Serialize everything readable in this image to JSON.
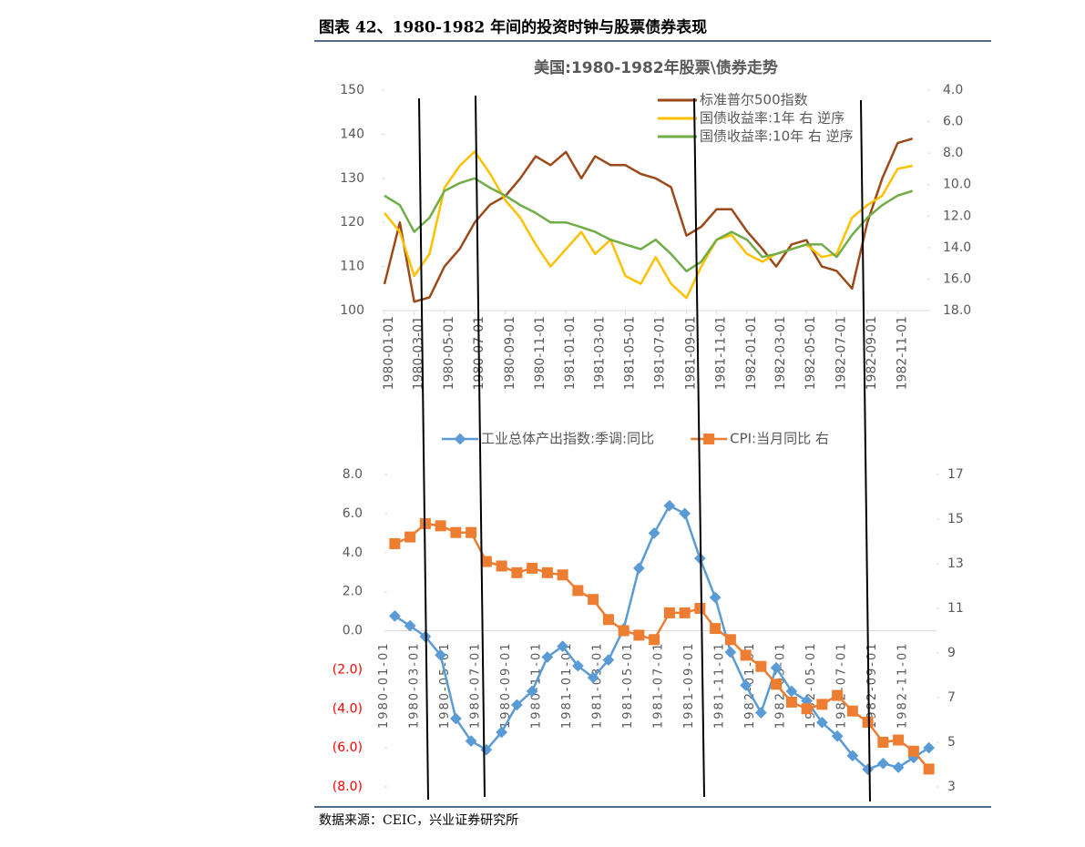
{
  "header": {
    "title": "图表 42、1980-1982 年间的投资时钟与股票债券表现"
  },
  "footer": {
    "source": "数据来源：CEIC，兴业证券研究所"
  },
  "chart_data": [
    {
      "type": "line",
      "title": "美国:1980-1982年股票\\债券走势",
      "legend": "upper right",
      "x": [
        "1980-01-01",
        "1980-02-01",
        "1980-03-01",
        "1980-04-01",
        "1980-05-01",
        "1980-06-01",
        "1980-07-01",
        "1980-08-01",
        "1980-09-01",
        "1980-10-01",
        "1980-11-01",
        "1980-12-01",
        "1981-01-01",
        "1981-02-01",
        "1981-03-01",
        "1981-04-01",
        "1981-05-01",
        "1981-06-01",
        "1981-07-01",
        "1981-08-01",
        "1981-09-01",
        "1981-10-01",
        "1981-11-01",
        "1981-12-01",
        "1982-01-01",
        "1982-02-01",
        "1982-03-01",
        "1982-04-01",
        "1982-05-01",
        "1982-06-01",
        "1982-07-01",
        "1982-08-01",
        "1982-09-01",
        "1982-10-01",
        "1982-11-01",
        "1982-12-01"
      ],
      "xlim": [
        "1980-01-01",
        "1982-12-31"
      ],
      "xticks": [
        "1980-01-01",
        "1980-03-01",
        "1980-05-01",
        "1980-07-01",
        "1980-09-01",
        "1980-11-01",
        "1981-01-01",
        "1981-03-01",
        "1981-05-01",
        "1981-07-01",
        "1981-09-01",
        "1981-11-01",
        "1982-01-01",
        "1982-03-01",
        "1982-05-01",
        "1982-07-01",
        "1982-09-01",
        "1982-11-01"
      ],
      "ylim": [
        100,
        150
      ],
      "yticks": [
        100,
        110,
        120,
        130,
        140,
        150
      ],
      "y2lim": [
        18,
        4
      ],
      "y2ticks": [
        {
          "value": 4,
          "label": "4.0"
        },
        {
          "value": 6,
          "label": "6.0"
        },
        {
          "value": 8,
          "label": "8.0"
        },
        {
          "value": 10,
          "label": "10.0"
        },
        {
          "value": 12,
          "label": "12.0"
        },
        {
          "value": 14,
          "label": "14.0"
        },
        {
          "value": 16,
          "label": "16.0"
        },
        {
          "value": 18,
          "label": "18.0"
        }
      ],
      "series": [
        {
          "name": "标准普尔500指数",
          "color": "#9c4a1a",
          "values": [
            106,
            120,
            102,
            103,
            110,
            114,
            120,
            124,
            126,
            130,
            135,
            133,
            136,
            130,
            135,
            133,
            133,
            131,
            130,
            128,
            117,
            119,
            123,
            123,
            118,
            114,
            110,
            115,
            116,
            110,
            109,
            105,
            120,
            130,
            138,
            139
          ]
        },
        {
          "name": "国债收益率:1年 右 逆序",
          "color": "#ffc000",
          "axis": "y2",
          "values": [
            11.8,
            13.0,
            15.8,
            14.4,
            10.2,
            8.8,
            7.9,
            9.3,
            11.0,
            12.1,
            13.8,
            15.2,
            14.1,
            13.0,
            14.4,
            13.5,
            15.8,
            16.3,
            14.6,
            16.3,
            17.2,
            15.2,
            13.5,
            13.2,
            14.4,
            14.9,
            14.4,
            14.1,
            13.8,
            14.6,
            14.4,
            12.1,
            11.3,
            10.7,
            9.0,
            8.8
          ]
        },
        {
          "name": "国债收益率:10年 右 逆序",
          "color": "#70ad47",
          "axis": "y2",
          "values": [
            10.7,
            11.3,
            13.0,
            12.1,
            10.4,
            9.9,
            9.6,
            10.2,
            10.7,
            11.3,
            11.8,
            12.4,
            12.4,
            12.7,
            13.0,
            13.5,
            13.8,
            14.1,
            13.5,
            14.4,
            15.5,
            14.9,
            13.5,
            13.0,
            13.5,
            14.6,
            14.4,
            14.1,
            13.8,
            13.8,
            14.6,
            13.2,
            12.1,
            11.3,
            10.7,
            10.4
          ]
        }
      ]
    },
    {
      "type": "line",
      "legend": "top",
      "negative_tick_color": "#ff0000",
      "categories": [
        "1980-01-01",
        null,
        "1980-03-01",
        null,
        "1980-05-01",
        null,
        "1980-07-01",
        null,
        "1980-09-01",
        null,
        "1980-11-01",
        null,
        "1981-01-01",
        null,
        "1981-03-01",
        null,
        "1981-05-01",
        null,
        "1981-07-01",
        null,
        "1981-09-01",
        null,
        "1981-11-01",
        null,
        "1982-01-01",
        null,
        "1982-03-01",
        null,
        "1982-05-01",
        null,
        "1982-07-01",
        null,
        "1982-09-01",
        null,
        "1982-11-01",
        null
      ],
      "ylim": [
        -8,
        8
      ],
      "yticks": [
        {
          "value": -8,
          "label": "(8.0)"
        },
        {
          "value": -6,
          "label": "(6.0)"
        },
        {
          "value": -4,
          "label": "(4.0)"
        },
        {
          "value": -2,
          "label": "(2.0)"
        },
        {
          "value": 0,
          "label": "0.0"
        },
        {
          "value": 2,
          "label": "2.0"
        },
        {
          "value": 4,
          "label": "4.0"
        },
        {
          "value": 6,
          "label": "6.0"
        },
        {
          "value": 8,
          "label": "8.0"
        }
      ],
      "y2lim": [
        3,
        17
      ],
      "y2ticks": [
        3,
        5,
        7,
        9,
        11,
        13,
        15,
        17
      ],
      "series": [
        {
          "name": "工业总体产出指数:季调:同比",
          "color": "#5b9bd5",
          "marker": "diamond",
          "values": [
            0.75,
            0.25,
            -0.3,
            -1.25,
            -4.5,
            -5.65,
            -6.1,
            -5.2,
            -3.8,
            -3.1,
            -1.35,
            -0.8,
            -1.8,
            -2.4,
            -1.5,
            0.1,
            3.2,
            5.0,
            6.4,
            6.0,
            3.7,
            1.7,
            -1.1,
            -2.8,
            -4.2,
            -1.9,
            -3.1,
            -3.6,
            -4.7,
            -5.4,
            -6.4,
            -7.1,
            -6.8,
            -7.0,
            -6.5,
            -6.0
          ]
        },
        {
          "name": "CPI:当月同比 右",
          "color": "#ed7d31",
          "marker": "square",
          "axis": "y2",
          "values": [
            13.9,
            14.2,
            14.8,
            14.7,
            14.4,
            14.4,
            13.1,
            12.9,
            12.6,
            12.8,
            12.6,
            12.5,
            11.8,
            11.4,
            10.5,
            10.0,
            9.8,
            9.6,
            10.8,
            10.8,
            11.0,
            10.1,
            9.6,
            8.9,
            8.4,
            7.6,
            6.8,
            6.5,
            6.7,
            7.1,
            6.4,
            5.9,
            5.0,
            5.1,
            4.6,
            3.8
          ]
        }
      ]
    }
  ]
}
